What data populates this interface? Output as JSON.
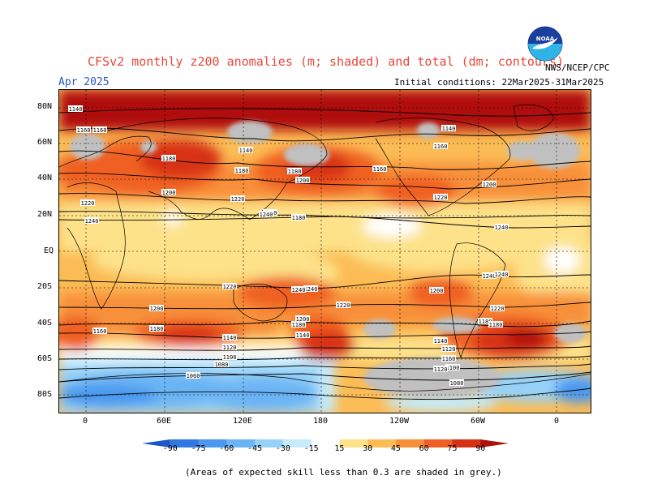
{
  "header": {
    "title": "CFSv2 monthly z200 anomalies (m; shaded) and total (dm; contours)",
    "month": "Apr 2025",
    "initial_conditions": "Initial conditions: 22Mar2025-31Mar2025",
    "agency": "NWS/NCEP/CPC",
    "logo_text": "NOAA"
  },
  "map": {
    "lat_labels": [
      "80N",
      "60N",
      "40N",
      "20N",
      "EQ",
      "20S",
      "40S",
      "60S",
      "80S"
    ],
    "lon_labels": [
      "0",
      "60E",
      "120E",
      "180",
      "120W",
      "60W",
      "0"
    ],
    "contour_labels": [
      "1140",
      "1160",
      "1180",
      "1200",
      "1220",
      "1240",
      "1240",
      "1240",
      "1220",
      "1200",
      "1180",
      "1160",
      "1140",
      "1120",
      "1100",
      "1080",
      "1060",
      "1160",
      "1180",
      "1200",
      "1220",
      "1240",
      "1240",
      "1220",
      "1200",
      "1180",
      "1160",
      "1140",
      "1120",
      "1100",
      "1080",
      "1180",
      "1180",
      "1140",
      "1140",
      "1180",
      "1200",
      "1240",
      "1220",
      "1180",
      "1160",
      "1140",
      "1120",
      "1160",
      "1200",
      "1220",
      "1240",
      "1240"
    ]
  },
  "colorbar": {
    "labels": [
      "-90",
      "-75",
      "-60",
      "-45",
      "-30",
      "-15",
      "15",
      "30",
      "45",
      "60",
      "75",
      "90"
    ],
    "colors": [
      "#1a56c8",
      "#2f78e0",
      "#4a98ef",
      "#6ab4f4",
      "#96d2f8",
      "#c6ecfc",
      "#ffffff",
      "#fde28a",
      "#fcbc55",
      "#f8903a",
      "#f06024",
      "#d83014",
      "#b01008"
    ]
  },
  "footnote": "(Areas of expected skill less than 0.3 are shaded in grey.)"
}
